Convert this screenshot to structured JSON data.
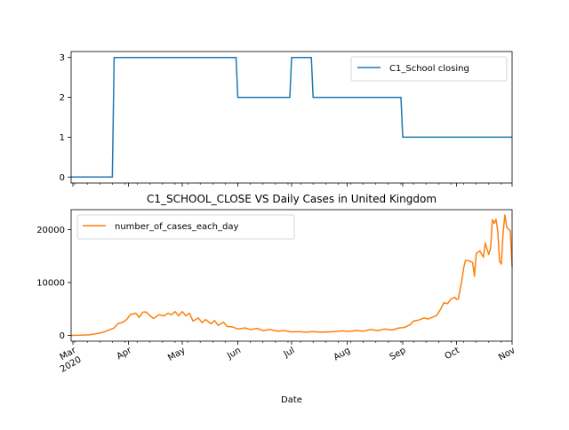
{
  "chart_data": [
    {
      "type": "line",
      "title": "",
      "xlabel": "",
      "ylabel": "",
      "ylim": [
        -0.15,
        3.15
      ],
      "yticks": [
        0,
        1,
        2,
        3
      ],
      "xlim": [
        "2020-02-29",
        "2020-11-01"
      ],
      "legend": "upper right",
      "grid": false,
      "series": [
        {
          "name": "C1_School closing",
          "color": "#1f77b4",
          "step_points": [
            [
              "2020-02-29",
              0
            ],
            [
              "2020-03-23",
              0
            ],
            [
              "2020-03-24",
              3
            ],
            [
              "2020-05-31",
              3
            ],
            [
              "2020-06-01",
              2
            ],
            [
              "2020-06-30",
              2
            ],
            [
              "2020-07-01",
              3
            ],
            [
              "2020-07-12",
              3
            ],
            [
              "2020-07-13",
              2
            ],
            [
              "2020-08-31",
              2
            ],
            [
              "2020-09-01",
              1
            ],
            [
              "2020-11-01",
              1
            ]
          ]
        }
      ]
    },
    {
      "type": "line",
      "title": "C1_SCHOOL_CLOSE VS Daily Cases in United Kingdom",
      "xlabel": "Date",
      "ylabel": "",
      "ylim": [
        -1100,
        23800
      ],
      "yticks": [
        0,
        10000,
        20000
      ],
      "xlim": [
        "2020-02-29",
        "2020-11-01"
      ],
      "x_ticklabels": [
        "Mar\n2020",
        "Apr",
        "May",
        "Jun",
        "Jul",
        "Aug",
        "Sep",
        "Oct",
        "Nov"
      ],
      "x_tickdates": [
        "2020-03-01",
        "2020-04-01",
        "2020-05-01",
        "2020-06-01",
        "2020-07-01",
        "2020-08-01",
        "2020-09-01",
        "2020-10-01",
        "2020-11-01"
      ],
      "legend": "upper left",
      "grid": false,
      "series": [
        {
          "name": "number_of_cases_each_day",
          "color": "#ff7f0e",
          "points": [
            [
              "2020-02-29",
              0
            ],
            [
              "2020-03-05",
              30
            ],
            [
              "2020-03-10",
              100
            ],
            [
              "2020-03-14",
              300
            ],
            [
              "2020-03-18",
              600
            ],
            [
              "2020-03-21",
              1000
            ],
            [
              "2020-03-24",
              1400
            ],
            [
              "2020-03-26",
              2200
            ],
            [
              "2020-03-29",
              2500
            ],
            [
              "2020-03-31",
              3000
            ],
            [
              "2020-04-02",
              3900
            ],
            [
              "2020-04-05",
              4200
            ],
            [
              "2020-04-07",
              3400
            ],
            [
              "2020-04-09",
              4400
            ],
            [
              "2020-04-11",
              4400
            ],
            [
              "2020-04-13",
              3700
            ],
            [
              "2020-04-15",
              3200
            ],
            [
              "2020-04-18",
              3900
            ],
            [
              "2020-04-21",
              3700
            ],
            [
              "2020-04-23",
              4200
            ],
            [
              "2020-04-25",
              3900
            ],
            [
              "2020-04-27",
              4500
            ],
            [
              "2020-04-29",
              3700
            ],
            [
              "2020-05-01",
              4500
            ],
            [
              "2020-05-03",
              3700
            ],
            [
              "2020-05-05",
              4200
            ],
            [
              "2020-05-07",
              2700
            ],
            [
              "2020-05-10",
              3300
            ],
            [
              "2020-05-12",
              2400
            ],
            [
              "2020-05-14",
              3000
            ],
            [
              "2020-05-17",
              2200
            ],
            [
              "2020-05-19",
              2800
            ],
            [
              "2020-05-21",
              1900
            ],
            [
              "2020-05-24",
              2500
            ],
            [
              "2020-05-26",
              1700
            ],
            [
              "2020-05-29",
              1600
            ],
            [
              "2020-06-01",
              1200
            ],
            [
              "2020-06-05",
              1400
            ],
            [
              "2020-06-08",
              1100
            ],
            [
              "2020-06-12",
              1300
            ],
            [
              "2020-06-15",
              900
            ],
            [
              "2020-06-19",
              1100
            ],
            [
              "2020-06-23",
              800
            ],
            [
              "2020-06-27",
              900
            ],
            [
              "2020-07-01",
              650
            ],
            [
              "2020-07-05",
              700
            ],
            [
              "2020-07-09",
              600
            ],
            [
              "2020-07-13",
              700
            ],
            [
              "2020-07-17",
              600
            ],
            [
              "2020-07-21",
              650
            ],
            [
              "2020-07-25",
              700
            ],
            [
              "2020-07-29",
              850
            ],
            [
              "2020-08-02",
              750
            ],
            [
              "2020-08-06",
              900
            ],
            [
              "2020-08-10",
              800
            ],
            [
              "2020-08-14",
              1100
            ],
            [
              "2020-08-18",
              900
            ],
            [
              "2020-08-22",
              1200
            ],
            [
              "2020-08-26",
              1000
            ],
            [
              "2020-08-30",
              1400
            ],
            [
              "2020-09-02",
              1500
            ],
            [
              "2020-09-05",
              2000
            ],
            [
              "2020-09-07",
              2700
            ],
            [
              "2020-09-10",
              2900
            ],
            [
              "2020-09-13",
              3300
            ],
            [
              "2020-09-15",
              3100
            ],
            [
              "2020-09-18",
              3500
            ],
            [
              "2020-09-20",
              3800
            ],
            [
              "2020-09-22",
              4900
            ],
            [
              "2020-09-24",
              6200
            ],
            [
              "2020-09-26",
              6000
            ],
            [
              "2020-09-28",
              6900
            ],
            [
              "2020-09-30",
              7200
            ],
            [
              "2020-10-01",
              6800
            ],
            [
              "2020-10-02",
              6900
            ],
            [
              "2020-10-04",
              10500
            ],
            [
              "2020-10-05",
              12800
            ],
            [
              "2020-10-06",
              14200
            ],
            [
              "2020-10-08",
              14100
            ],
            [
              "2020-10-10",
              13800
            ],
            [
              "2020-10-11",
              11200
            ],
            [
              "2020-10-12",
              15500
            ],
            [
              "2020-10-14",
              16000
            ],
            [
              "2020-10-16",
              14800
            ],
            [
              "2020-10-17",
              17500
            ],
            [
              "2020-10-19",
              15300
            ],
            [
              "2020-10-20",
              16500
            ],
            [
              "2020-10-21",
              21900
            ],
            [
              "2020-10-22",
              21200
            ],
            [
              "2020-10-23",
              22000
            ],
            [
              "2020-10-24",
              19800
            ],
            [
              "2020-10-25",
              14000
            ],
            [
              "2020-10-26",
              13500
            ],
            [
              "2020-10-27",
              19500
            ],
            [
              "2020-10-28",
              22800
            ],
            [
              "2020-10-29",
              20500
            ],
            [
              "2020-10-30",
              20100
            ],
            [
              "2020-10-31",
              19800
            ],
            [
              "2020-11-01",
              13000
            ]
          ]
        }
      ]
    }
  ]
}
